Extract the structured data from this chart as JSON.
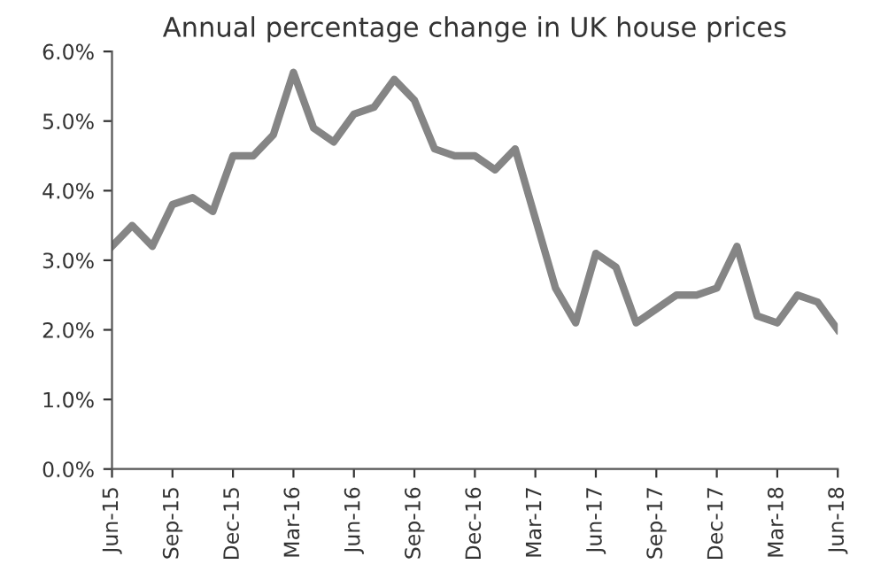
{
  "chart_data": {
    "type": "line",
    "title": "Annual percentage change in UK house prices",
    "categories": [
      "Jun-15",
      null,
      null,
      "Sep-15",
      null,
      null,
      "Dec-15",
      null,
      null,
      "Mar-16",
      null,
      null,
      "Jun-16",
      null,
      null,
      "Sep-16",
      null,
      null,
      "Dec-16",
      null,
      null,
      "Mar-17",
      null,
      null,
      "Jun-17",
      null,
      null,
      "Sep-17",
      null,
      null,
      "Dec-17",
      null,
      null,
      "Mar-18",
      null,
      null,
      "Jun-18"
    ],
    "series": [
      {
        "color": "#858585",
        "values": [
          3.2,
          3.5,
          3.2,
          3.8,
          3.9,
          3.7,
          4.5,
          4.5,
          4.8,
          5.7,
          4.9,
          4.7,
          5.1,
          5.2,
          5.6,
          5.3,
          4.6,
          4.5,
          4.5,
          4.3,
          4.6,
          3.6,
          2.6,
          2.1,
          3.1,
          2.9,
          2.1,
          2.3,
          2.5,
          2.5,
          2.6,
          3.2,
          2.2,
          2.1,
          2.5,
          2.4,
          2.0
        ]
      }
    ],
    "ylim": [
      0,
      6
    ],
    "yticks": [
      {
        "value": 0,
        "label": "0.0%"
      },
      {
        "value": 1,
        "label": "1.0%"
      },
      {
        "value": 2,
        "label": "2.0%"
      },
      {
        "value": 3,
        "label": "3.0%"
      },
      {
        "value": 4,
        "label": "4.0%"
      },
      {
        "value": 5,
        "label": "5.0%"
      },
      {
        "value": 6,
        "label": "6.0%"
      }
    ],
    "grid": false,
    "marker": "none",
    "line_style": "solid"
  }
}
